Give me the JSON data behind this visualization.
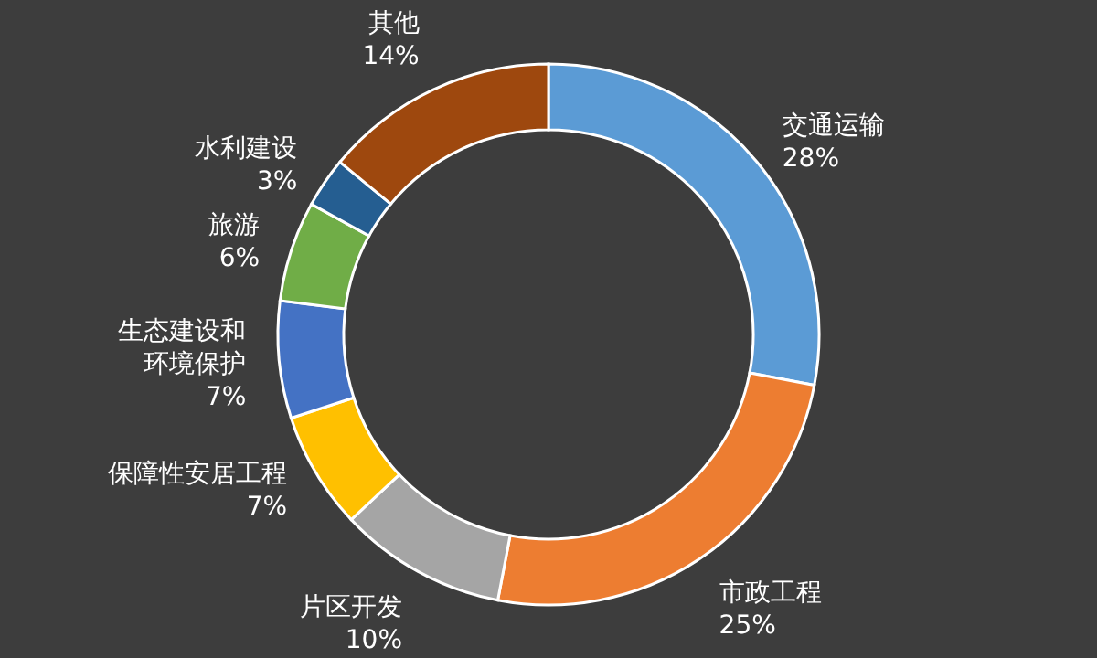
{
  "chart_data": {
    "type": "donut",
    "categories": [
      "交通运输",
      "市政工程",
      "片区开发",
      "保障性安居工程",
      "生态建设和环境保护",
      "旅游",
      "水利建设",
      "其他"
    ],
    "values": [
      28,
      25,
      10,
      7,
      7,
      6,
      3,
      14
    ],
    "value_labels": [
      "28%",
      "25%",
      "10%",
      "7%",
      "7%",
      "6%",
      "3%",
      "14%"
    ],
    "colors": [
      "#5b9bd5",
      "#ed7d31",
      "#a5a5a5",
      "#ffc000",
      "#4472c4",
      "#70ad47",
      "#255e91",
      "#9e480e"
    ]
  }
}
